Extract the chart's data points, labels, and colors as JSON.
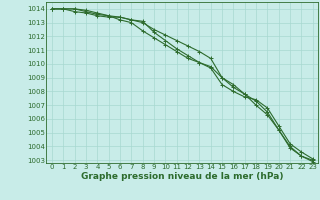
{
  "background_color": "#c8ece8",
  "grid_color": "#a8d8d0",
  "line_color": "#2d6b2d",
  "xlabel": "Graphe pression niveau de la mer (hPa)",
  "ylim": [
    1002.8,
    1014.5
  ],
  "xlim": [
    -0.5,
    23.5
  ],
  "yticks": [
    1003,
    1004,
    1005,
    1006,
    1007,
    1008,
    1009,
    1010,
    1011,
    1012,
    1013,
    1014
  ],
  "xticks": [
    0,
    1,
    2,
    3,
    4,
    5,
    6,
    7,
    8,
    9,
    10,
    11,
    12,
    13,
    14,
    15,
    16,
    17,
    18,
    19,
    20,
    21,
    22,
    23
  ],
  "series1": [
    1014.0,
    1014.0,
    1013.8,
    1013.7,
    1013.5,
    1013.4,
    1013.4,
    1013.2,
    1013.0,
    1012.5,
    1012.1,
    1011.7,
    1011.3,
    1010.9,
    1010.4,
    1009.0,
    1008.5,
    1007.8,
    1007.0,
    1006.3,
    1005.2,
    1004.0,
    1003.3,
    1003.0
  ],
  "series2": [
    1014.0,
    1014.0,
    1014.0,
    1013.8,
    1013.6,
    1013.5,
    1013.2,
    1013.0,
    1012.4,
    1011.9,
    1011.4,
    1010.9,
    1010.4,
    1010.1,
    1009.8,
    1009.0,
    1008.3,
    1007.8,
    1007.3,
    1006.5,
    1005.2,
    1003.9,
    1003.3,
    1002.9
  ],
  "series3": [
    1014.0,
    1014.0,
    1014.0,
    1013.9,
    1013.7,
    1013.5,
    1013.4,
    1013.2,
    1013.1,
    1012.3,
    1011.7,
    1011.1,
    1010.6,
    1010.1,
    1009.7,
    1008.5,
    1008.0,
    1007.6,
    1007.4,
    1006.8,
    1005.5,
    1004.2,
    1003.6,
    1003.1
  ],
  "tick_fontsize": 5.0,
  "xlabel_fontsize": 6.5,
  "line_width": 0.8,
  "marker_size": 2.5
}
